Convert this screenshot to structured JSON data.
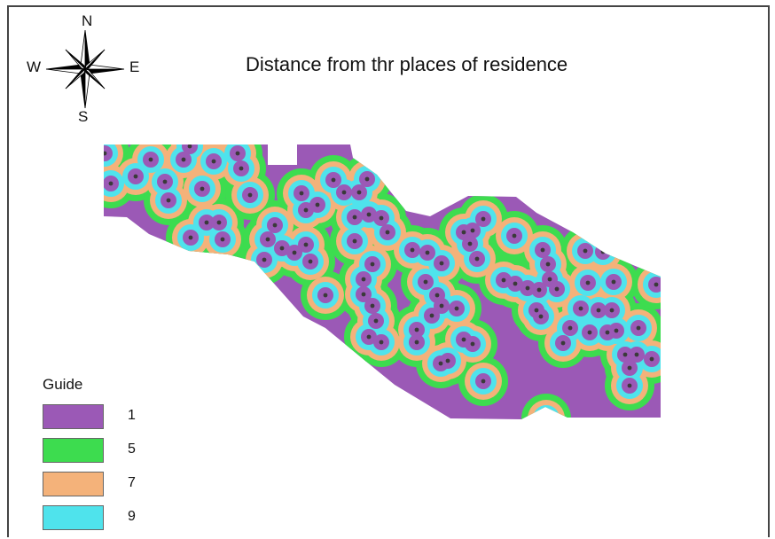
{
  "title": "Distance from thr places of residence",
  "compass": {
    "n": "N",
    "s": "S",
    "w": "W",
    "e": "E"
  },
  "legend": {
    "title": "Guide",
    "items": [
      {
        "label": "1",
        "color": "#9b59b6"
      },
      {
        "label": "5",
        "color": "#3ddc4f"
      },
      {
        "label": "7",
        "color": "#f4b27a"
      },
      {
        "label": "9",
        "color": "#4fe3ec"
      }
    ]
  },
  "colors": {
    "zone_1": "#9b59b6",
    "zone_5": "#3ddc4f",
    "zone_7": "#f4b27a",
    "zone_9": "#4fe3ec",
    "point": "#3a3a3a"
  }
}
